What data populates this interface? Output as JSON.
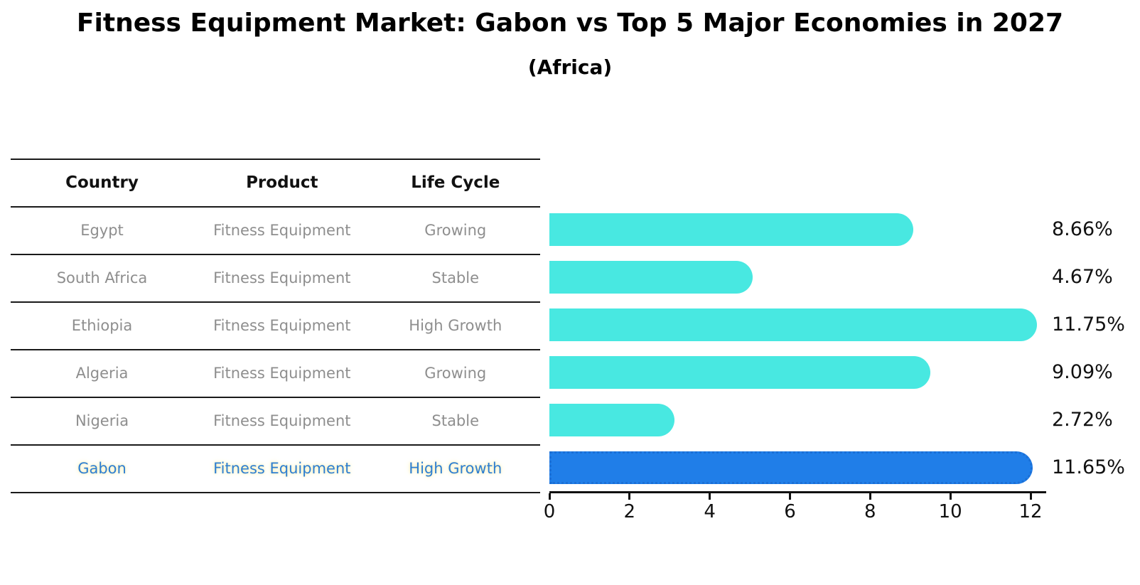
{
  "title": "Fitness Equipment Market: Gabon vs Top 5 Major Economies in 2027",
  "subtitle": "(Africa)",
  "table": {
    "headers": [
      "Country",
      "Product",
      "Life Cycle"
    ],
    "rows": [
      {
        "country": "Egypt",
        "product": "Fitness Equipment",
        "life_cycle": "Growing",
        "highlight": false
      },
      {
        "country": "South Africa",
        "product": "Fitness Equipment",
        "life_cycle": "Stable",
        "highlight": false
      },
      {
        "country": "Ethiopia",
        "product": "Fitness Equipment",
        "life_cycle": "High Growth",
        "highlight": false
      },
      {
        "country": "Algeria",
        "product": "Fitness Equipment",
        "life_cycle": "Growing",
        "highlight": false
      },
      {
        "country": "Nigeria",
        "product": "Fitness Equipment",
        "life_cycle": "Stable",
        "highlight": false
      },
      {
        "country": "Gabon",
        "product": "Fitness Equipment",
        "life_cycle": "High Growth",
        "highlight": true
      }
    ]
  },
  "chart_data": {
    "type": "bar",
    "orientation": "horizontal",
    "title": "Fitness Equipment Market: Gabon vs Top 5 Major Economies in 2027",
    "subtitle": "(Africa)",
    "categories": [
      "Egypt",
      "South Africa",
      "Ethiopia",
      "Algeria",
      "Nigeria",
      "Gabon"
    ],
    "values": [
      8.66,
      4.67,
      11.75,
      9.09,
      2.72,
      11.65
    ],
    "value_labels": [
      "8.66%",
      "4.67%",
      "11.75%",
      "9.09%",
      "2.72%",
      "11.65%"
    ],
    "x_ticks": [
      0,
      2,
      4,
      6,
      8,
      10,
      12
    ],
    "xlim": [
      0,
      12
    ],
    "xlabel": "",
    "ylabel": "",
    "grid": false,
    "legend": false,
    "bar_color": "#48e8e1",
    "highlight_bar_color": "#207ee8",
    "highlight_border_color": "#1b6fd6",
    "highlight_index": 5,
    "highlight_text_color": "#2e7fd2"
  }
}
